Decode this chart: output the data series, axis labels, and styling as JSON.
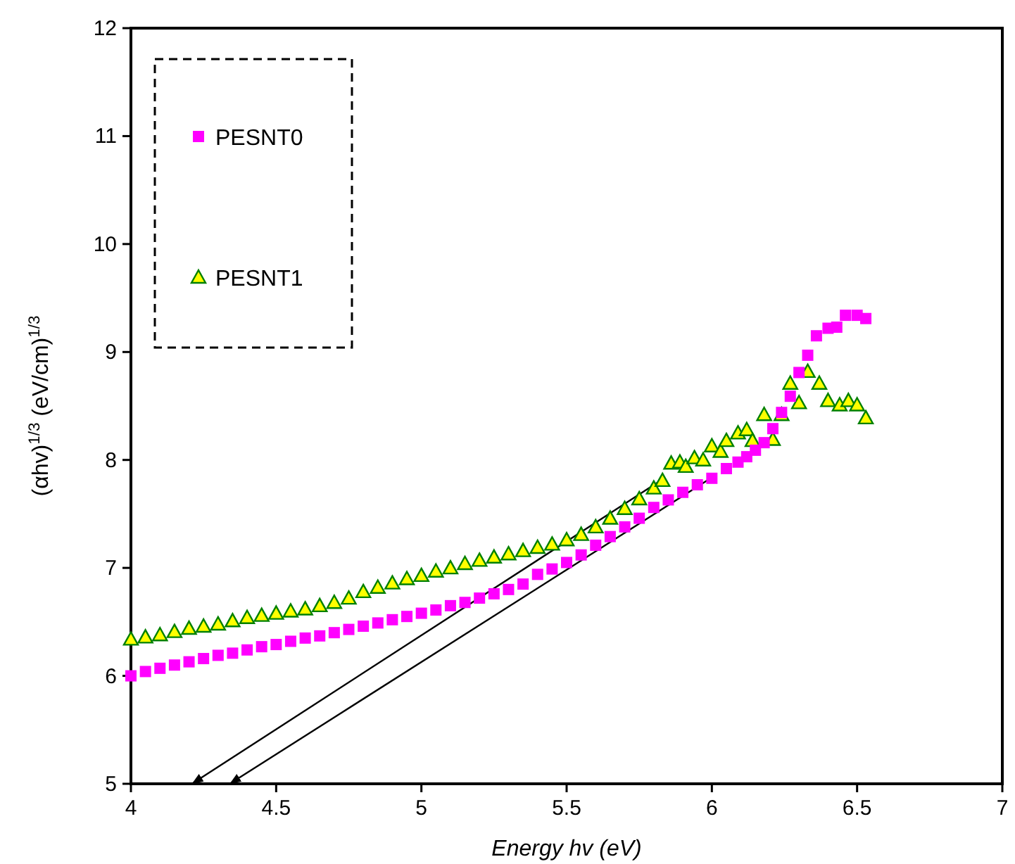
{
  "chart_data": {
    "type": "scatter",
    "xlabel": "Energy hv (eV)",
    "ylabel": "(αhv)$^{1/3}$ (eV/cm)$^{1/3}$",
    "xlim": [
      4,
      7
    ],
    "xticks": [
      4,
      4.5,
      5,
      5.5,
      6,
      6.5,
      7
    ],
    "ylim": [
      5,
      12
    ],
    "yticks": [
      5,
      6,
      7,
      8,
      9,
      10,
      11,
      12
    ],
    "grid": false,
    "legend": "top left",
    "series": [
      {
        "name": "PESNT0",
        "color": "#ff00ff",
        "marker": "square",
        "x": [
          4.0,
          4.05,
          4.1,
          4.15,
          4.2,
          4.25,
          4.3,
          4.35,
          4.4,
          4.45,
          4.5,
          4.55,
          4.6,
          4.65,
          4.7,
          4.75,
          4.8,
          4.85,
          4.9,
          4.95,
          5.0,
          5.05,
          5.1,
          5.15,
          5.2,
          5.25,
          5.3,
          5.35,
          5.4,
          5.45,
          5.5,
          5.55,
          5.6,
          5.65,
          5.7,
          5.75,
          5.8,
          5.85,
          5.9,
          5.95,
          6.0,
          6.05,
          6.09,
          6.12,
          6.15,
          6.18,
          6.21,
          6.24,
          6.27,
          6.3,
          6.33,
          6.36,
          6.4,
          6.43,
          6.46,
          6.5,
          6.53
        ],
        "values": [
          6.0,
          6.04,
          6.07,
          6.1,
          6.13,
          6.16,
          6.19,
          6.21,
          6.24,
          6.27,
          6.29,
          6.32,
          6.35,
          6.37,
          6.4,
          6.43,
          6.46,
          6.49,
          6.52,
          6.55,
          6.58,
          6.61,
          6.65,
          6.68,
          6.72,
          6.76,
          6.8,
          6.85,
          6.94,
          6.99,
          7.05,
          7.12,
          7.21,
          7.29,
          7.38,
          7.46,
          7.56,
          7.63,
          7.7,
          7.77,
          7.83,
          7.92,
          7.98,
          8.03,
          8.09,
          8.16,
          8.29,
          8.44,
          8.59,
          8.81,
          8.97,
          9.15,
          9.22,
          9.23,
          9.34,
          9.34,
          9.31
        ]
      },
      {
        "name": "PESNT1",
        "color": "#ffff00",
        "marker": "triangle",
        "x": [
          4.0,
          4.05,
          4.1,
          4.15,
          4.2,
          4.25,
          4.3,
          4.35,
          4.4,
          4.45,
          4.5,
          4.55,
          4.6,
          4.65,
          4.7,
          4.75,
          4.8,
          4.85,
          4.9,
          4.95,
          5.0,
          5.05,
          5.1,
          5.15,
          5.2,
          5.25,
          5.3,
          5.35,
          5.4,
          5.45,
          5.5,
          5.55,
          5.6,
          5.65,
          5.7,
          5.75,
          5.8,
          5.83,
          5.86,
          5.89,
          5.91,
          5.94,
          5.97,
          6.0,
          6.03,
          6.05,
          6.09,
          6.12,
          6.14,
          6.18,
          6.21,
          6.24,
          6.27,
          6.3,
          6.33,
          6.37,
          6.4,
          6.44,
          6.47,
          6.5,
          6.53
        ],
        "values": [
          6.34,
          6.36,
          6.38,
          6.41,
          6.44,
          6.46,
          6.48,
          6.51,
          6.54,
          6.56,
          6.58,
          6.6,
          6.62,
          6.65,
          6.68,
          6.72,
          6.78,
          6.82,
          6.86,
          6.9,
          6.93,
          6.97,
          7.0,
          7.04,
          7.07,
          7.1,
          7.13,
          7.16,
          7.19,
          7.22,
          7.26,
          7.31,
          7.38,
          7.46,
          7.55,
          7.64,
          7.74,
          7.81,
          7.97,
          7.98,
          7.94,
          8.02,
          8.0,
          8.13,
          8.08,
          8.18,
          8.25,
          8.28,
          8.18,
          8.42,
          8.19,
          8.42,
          8.71,
          8.53,
          8.82,
          8.71,
          8.55,
          8.51,
          8.55,
          8.51,
          8.39
        ]
      },
      {
        "type": "line",
        "color": "#000000",
        "x": [
          5.83,
          4.21
        ],
        "values": [
          7.82,
          5.0
        ]
      },
      {
        "type": "line",
        "color": "#000000",
        "x": [
          5.99,
          4.34
        ],
        "values": [
          7.82,
          5.0
        ]
      }
    ]
  }
}
